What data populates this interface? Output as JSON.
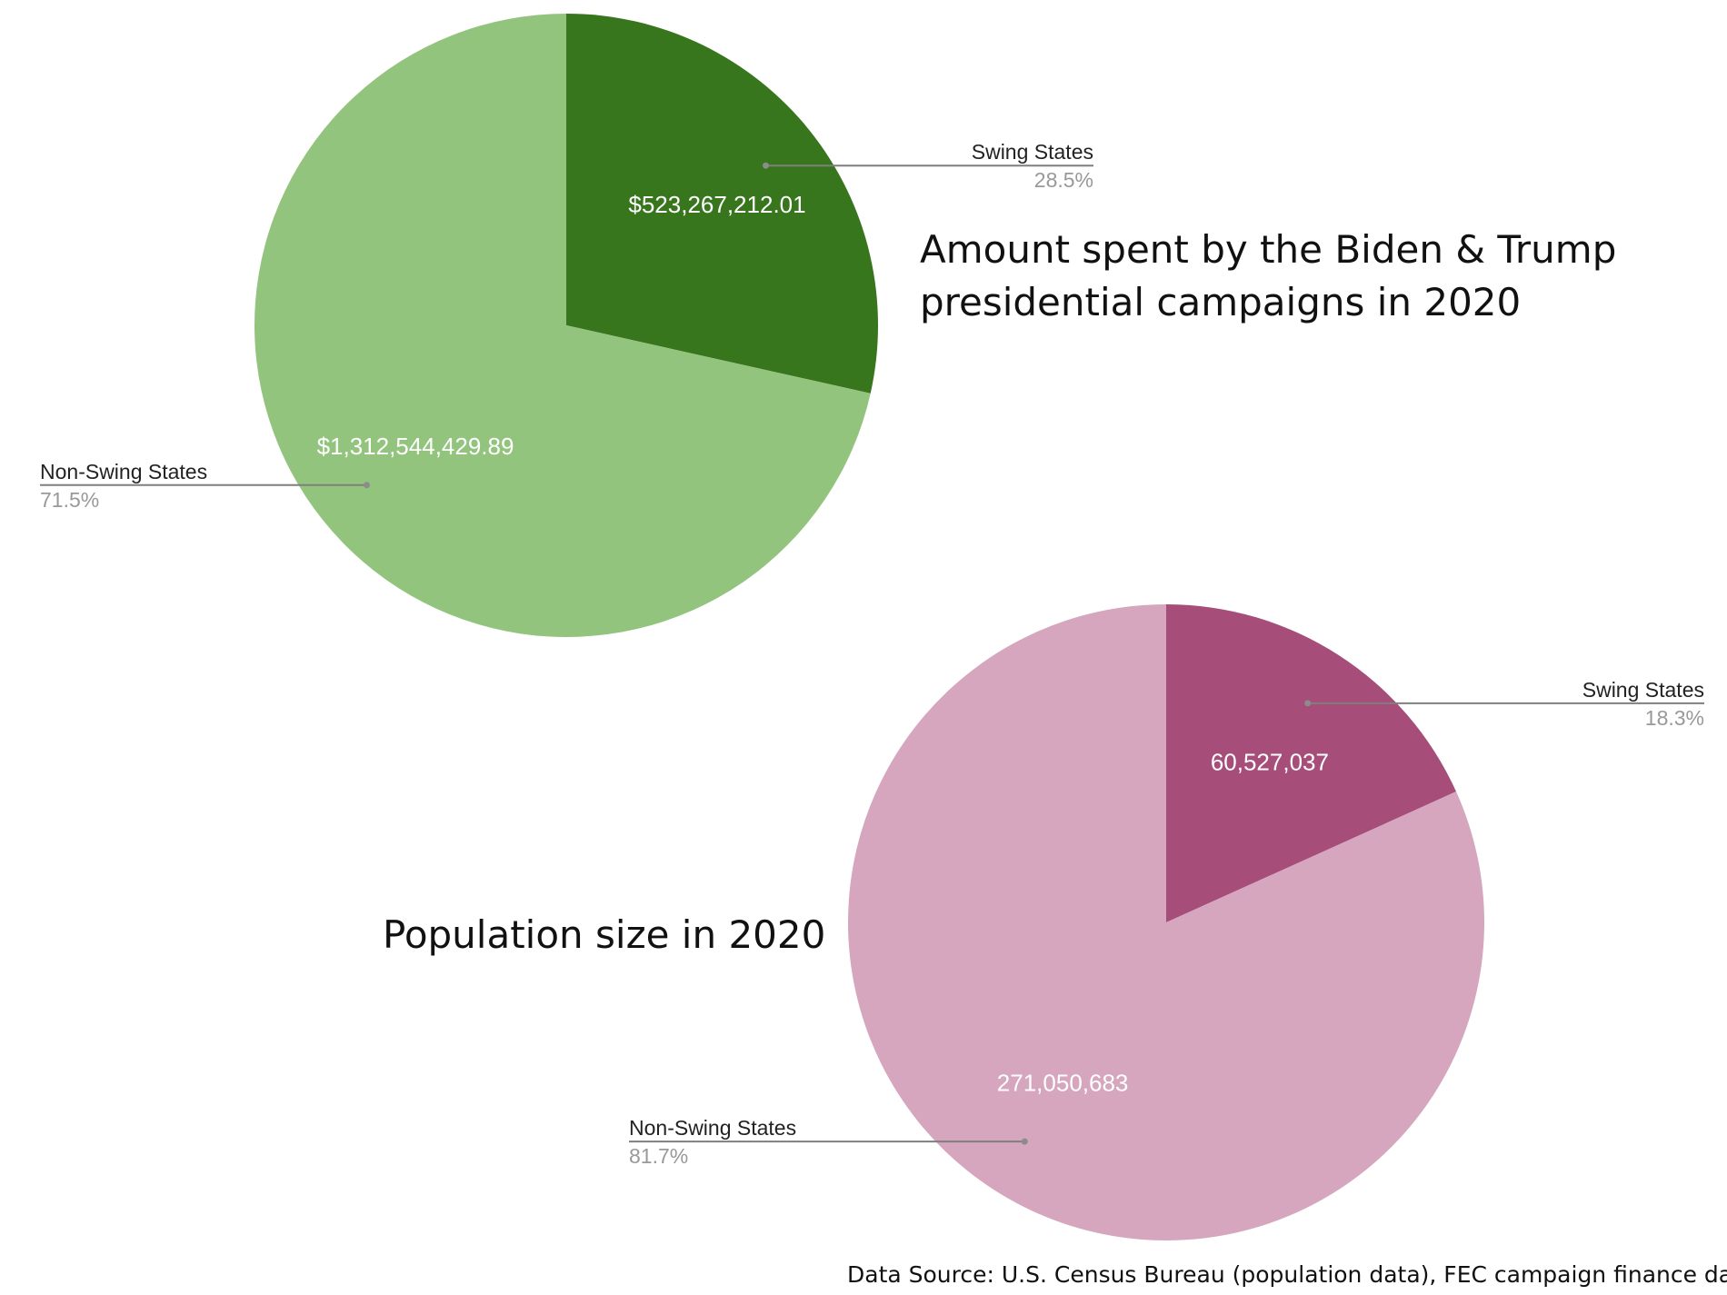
{
  "chart_data": [
    {
      "type": "pie",
      "title": "Amount spent by the Biden & Trump presidential campaigns in 2020",
      "title_lines": [
        "Amount spent by the Biden & Trump",
        "presidential campaigns in 2020"
      ],
      "slices": [
        {
          "name": "Swing States",
          "value": 523267212.01,
          "value_label": "$523,267,212.01",
          "percent_label": "28.5%",
          "color": "#38761d"
        },
        {
          "name": "Non-Swing States",
          "value": 1312544429.89,
          "value_label": "$1,312,544,429.89",
          "percent_label": "71.5%",
          "color": "#93c47d"
        }
      ]
    },
    {
      "type": "pie",
      "title": "Population size in 2020",
      "title_lines": [
        "Population size in 2020"
      ],
      "slices": [
        {
          "name": "Swing States",
          "value": 60527037,
          "value_label": "60,527,037",
          "percent_label": "18.3%",
          "color": "#a64d79"
        },
        {
          "name": "Non-Swing States",
          "value": 271050683,
          "value_label": "271,050,683",
          "percent_label": "81.7%",
          "color": "#d5a6bd"
        }
      ]
    }
  ],
  "source_note": "Data Source: U.S. Census Bureau (population data), FEC campaign finance data"
}
